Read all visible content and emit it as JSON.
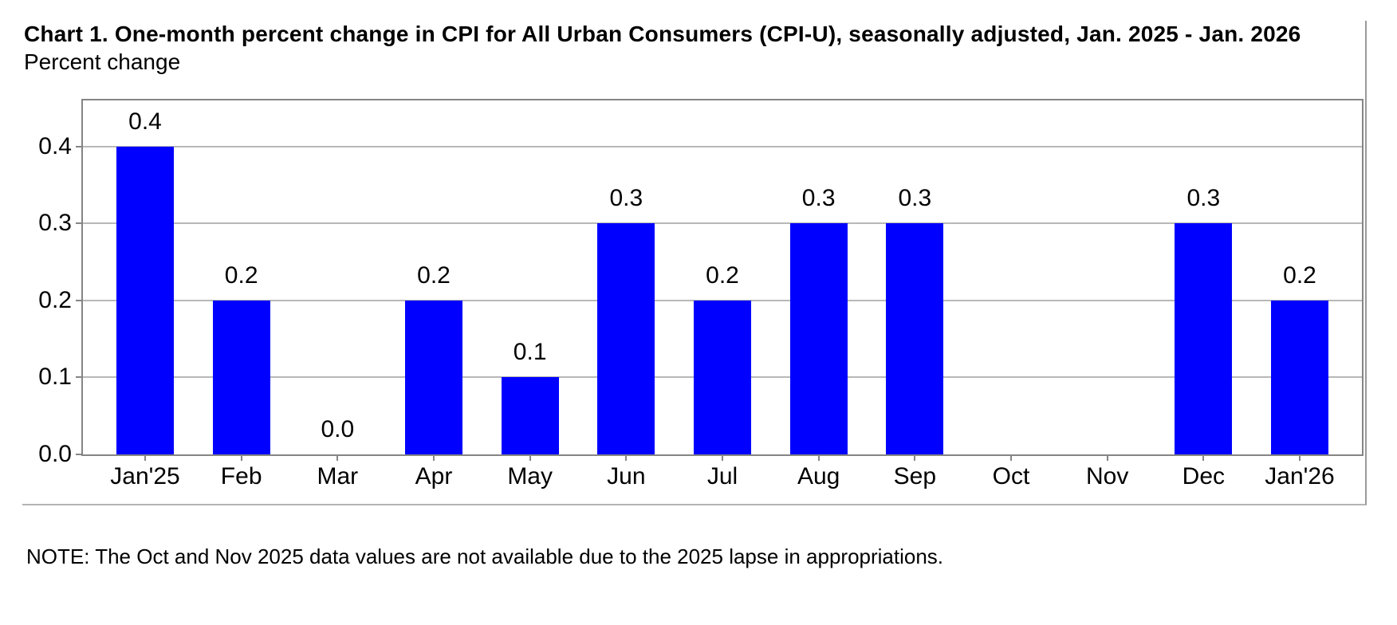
{
  "chart": {
    "title": "Chart 1. One-month percent change in CPI for All Urban Consumers (CPI-U), seasonally adjusted, Jan. 2025 - Jan. 2026",
    "subtitle": "Percent change",
    "note": "NOTE: The Oct and Nov 2025 data values are not available due to the 2025 lapse in appropriations."
  },
  "chart_data": {
    "type": "bar",
    "title": "Chart 1. One-month percent change in CPI for All Urban Consumers (CPI-U), seasonally adjusted, Jan. 2025 - Jan. 2026",
    "ylabel": "Percent change",
    "xlabel": "",
    "categories": [
      "Jan'25",
      "Feb",
      "Mar",
      "Apr",
      "May",
      "Jun",
      "Jul",
      "Aug",
      "Sep",
      "Oct",
      "Nov",
      "Dec",
      "Jan'26"
    ],
    "values": [
      0.4,
      0.2,
      0.0,
      0.2,
      0.1,
      0.3,
      0.2,
      0.3,
      0.3,
      null,
      null,
      0.3,
      0.2
    ],
    "value_labels": [
      "0.4",
      "0.2",
      "0.0",
      "0.2",
      "0.1",
      "0.3",
      "0.2",
      "0.3",
      "0.3",
      "",
      "",
      "0.3",
      "0.2"
    ],
    "missing_categories": [
      "Oct",
      "Nov"
    ],
    "yticks": [
      0.0,
      0.1,
      0.2,
      0.3,
      0.4
    ],
    "ytick_labels": [
      "0.0",
      "0.1",
      "0.2",
      "0.3",
      "0.4"
    ],
    "ylim": [
      0,
      0.46
    ],
    "grid": "horizontal",
    "legend": "none",
    "bar_color": "#0000fe",
    "gridline_color": "#b8b8b8",
    "axis_color": "#858585",
    "note": "NOTE: The Oct and Nov 2025 data values are not available due to the 2025 lapse in appropriations."
  }
}
